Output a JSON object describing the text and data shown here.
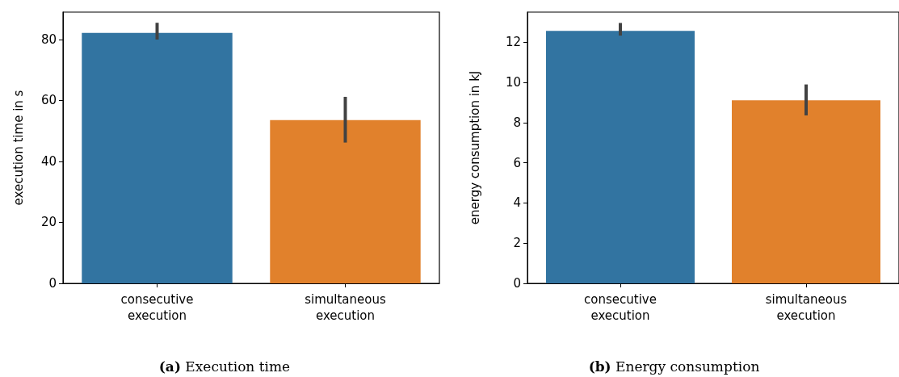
{
  "chart_data": [
    {
      "type": "bar",
      "title": "(a) Execution time",
      "ylabel": "execution time in s",
      "categories": [
        "consecutive\nexecution",
        "simultaneous\nexecution"
      ],
      "values": [
        82.2,
        53.6
      ],
      "colors": [
        "#3274a1",
        "#e1812c"
      ],
      "errors": [
        [
          80.0,
          85.5
        ],
        [
          46.2,
          61.2
        ]
      ],
      "ylim": [
        0,
        89
      ],
      "yticks": [
        0,
        20,
        40,
        60,
        80
      ],
      "grid": false
    },
    {
      "type": "bar",
      "title": "(b) Energy consumption",
      "ylabel": "energy consumption in kJ",
      "categories": [
        "consecutive\nexecution",
        "simultaneous\nexecution"
      ],
      "values": [
        12.57,
        9.11
      ],
      "colors": [
        "#3274a1",
        "#e1812c"
      ],
      "errors": [
        [
          12.33,
          12.96
        ],
        [
          8.36,
          9.9
        ]
      ],
      "ylim": [
        0,
        13.5
      ],
      "yticks": [
        0,
        2,
        4,
        6,
        8,
        10,
        12
      ],
      "grid": false
    }
  ]
}
